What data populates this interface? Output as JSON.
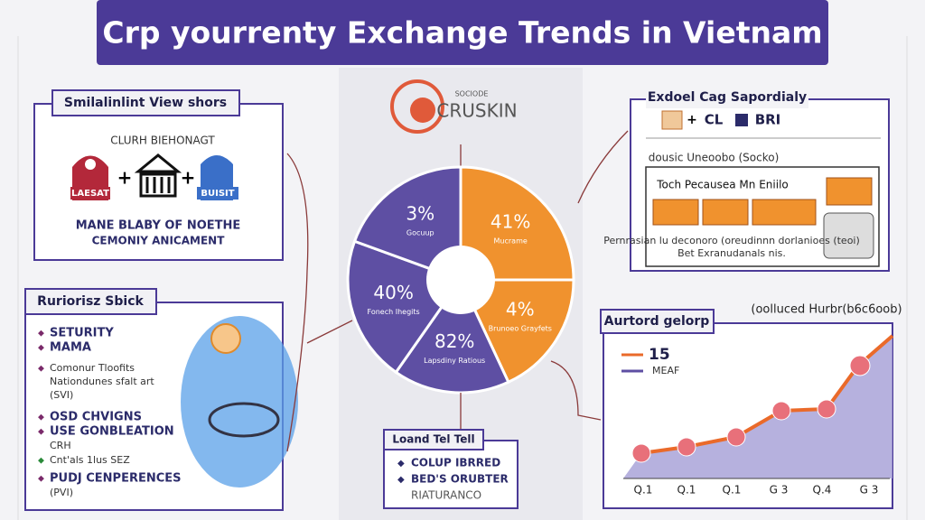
{
  "header": {
    "title": "Crp yourrenty Exchange Trends in Vietnam"
  },
  "left_top": {
    "heading": "Smilalinlint View shors",
    "subtitle": "CLURH BIEHONAGT",
    "icon_labels": [
      "LAESAT",
      "BUISIT"
    ],
    "caption": [
      "MANE BLABY OF NOETHE",
      "CEMONIY ANICAMENT"
    ]
  },
  "left_bottom": {
    "heading": "Ruriorisz Sbick",
    "items": [
      "SETURITY",
      "MAMA",
      "Comonur Tloofits",
      "Nationdunes sfalt art",
      "(SVI)",
      "OSD CHVIGNS",
      "USE GONBLEATION",
      "CRH",
      "Cnt'als 1lus SEZ",
      "PUDJ CENPERENCES",
      "(PVI)"
    ]
  },
  "center": {
    "logo_small": "SOCIODE",
    "logo": "CRUSKIN",
    "pie_labels": [
      {
        "value": "41%",
        "label": "Mucrame"
      },
      {
        "value": "4%",
        "label": "Brunoeo Grayfets"
      },
      {
        "value": "82%",
        "label": "Lapsdiny Ratious"
      },
      {
        "value": "40%",
        "label": "Fonech Ihegits"
      },
      {
        "value": "3%",
        "label": "Gocuup"
      }
    ],
    "box_heading": "Loand Tel Tell",
    "box_items": [
      "COLUP IBRRED",
      "BED'S ORUBTER",
      "RIATURANCO"
    ]
  },
  "right_top": {
    "heading": "Exdoel Cag Sapordialy",
    "row": [
      "CL",
      "BRI"
    ],
    "subtitle": "dousic Uneoobo (Socko)",
    "box_title": "Toch Pecausea Mn Eniilo",
    "notes": [
      "Pernrasian lu deconoro (oreudinnn dorlanioes (teoi)",
      "Bet Exranudanals nis."
    ]
  },
  "right_bottom": {
    "heading": "Aurtord gelorp",
    "note": "(oolluced Hurbr(b6c6oob)",
    "legend": [
      "15",
      "MEAF"
    ],
    "x_labels": [
      "Q.1",
      "Q.1",
      "Q.1",
      "G 3",
      "Q.4",
      "G 3"
    ]
  }
}
